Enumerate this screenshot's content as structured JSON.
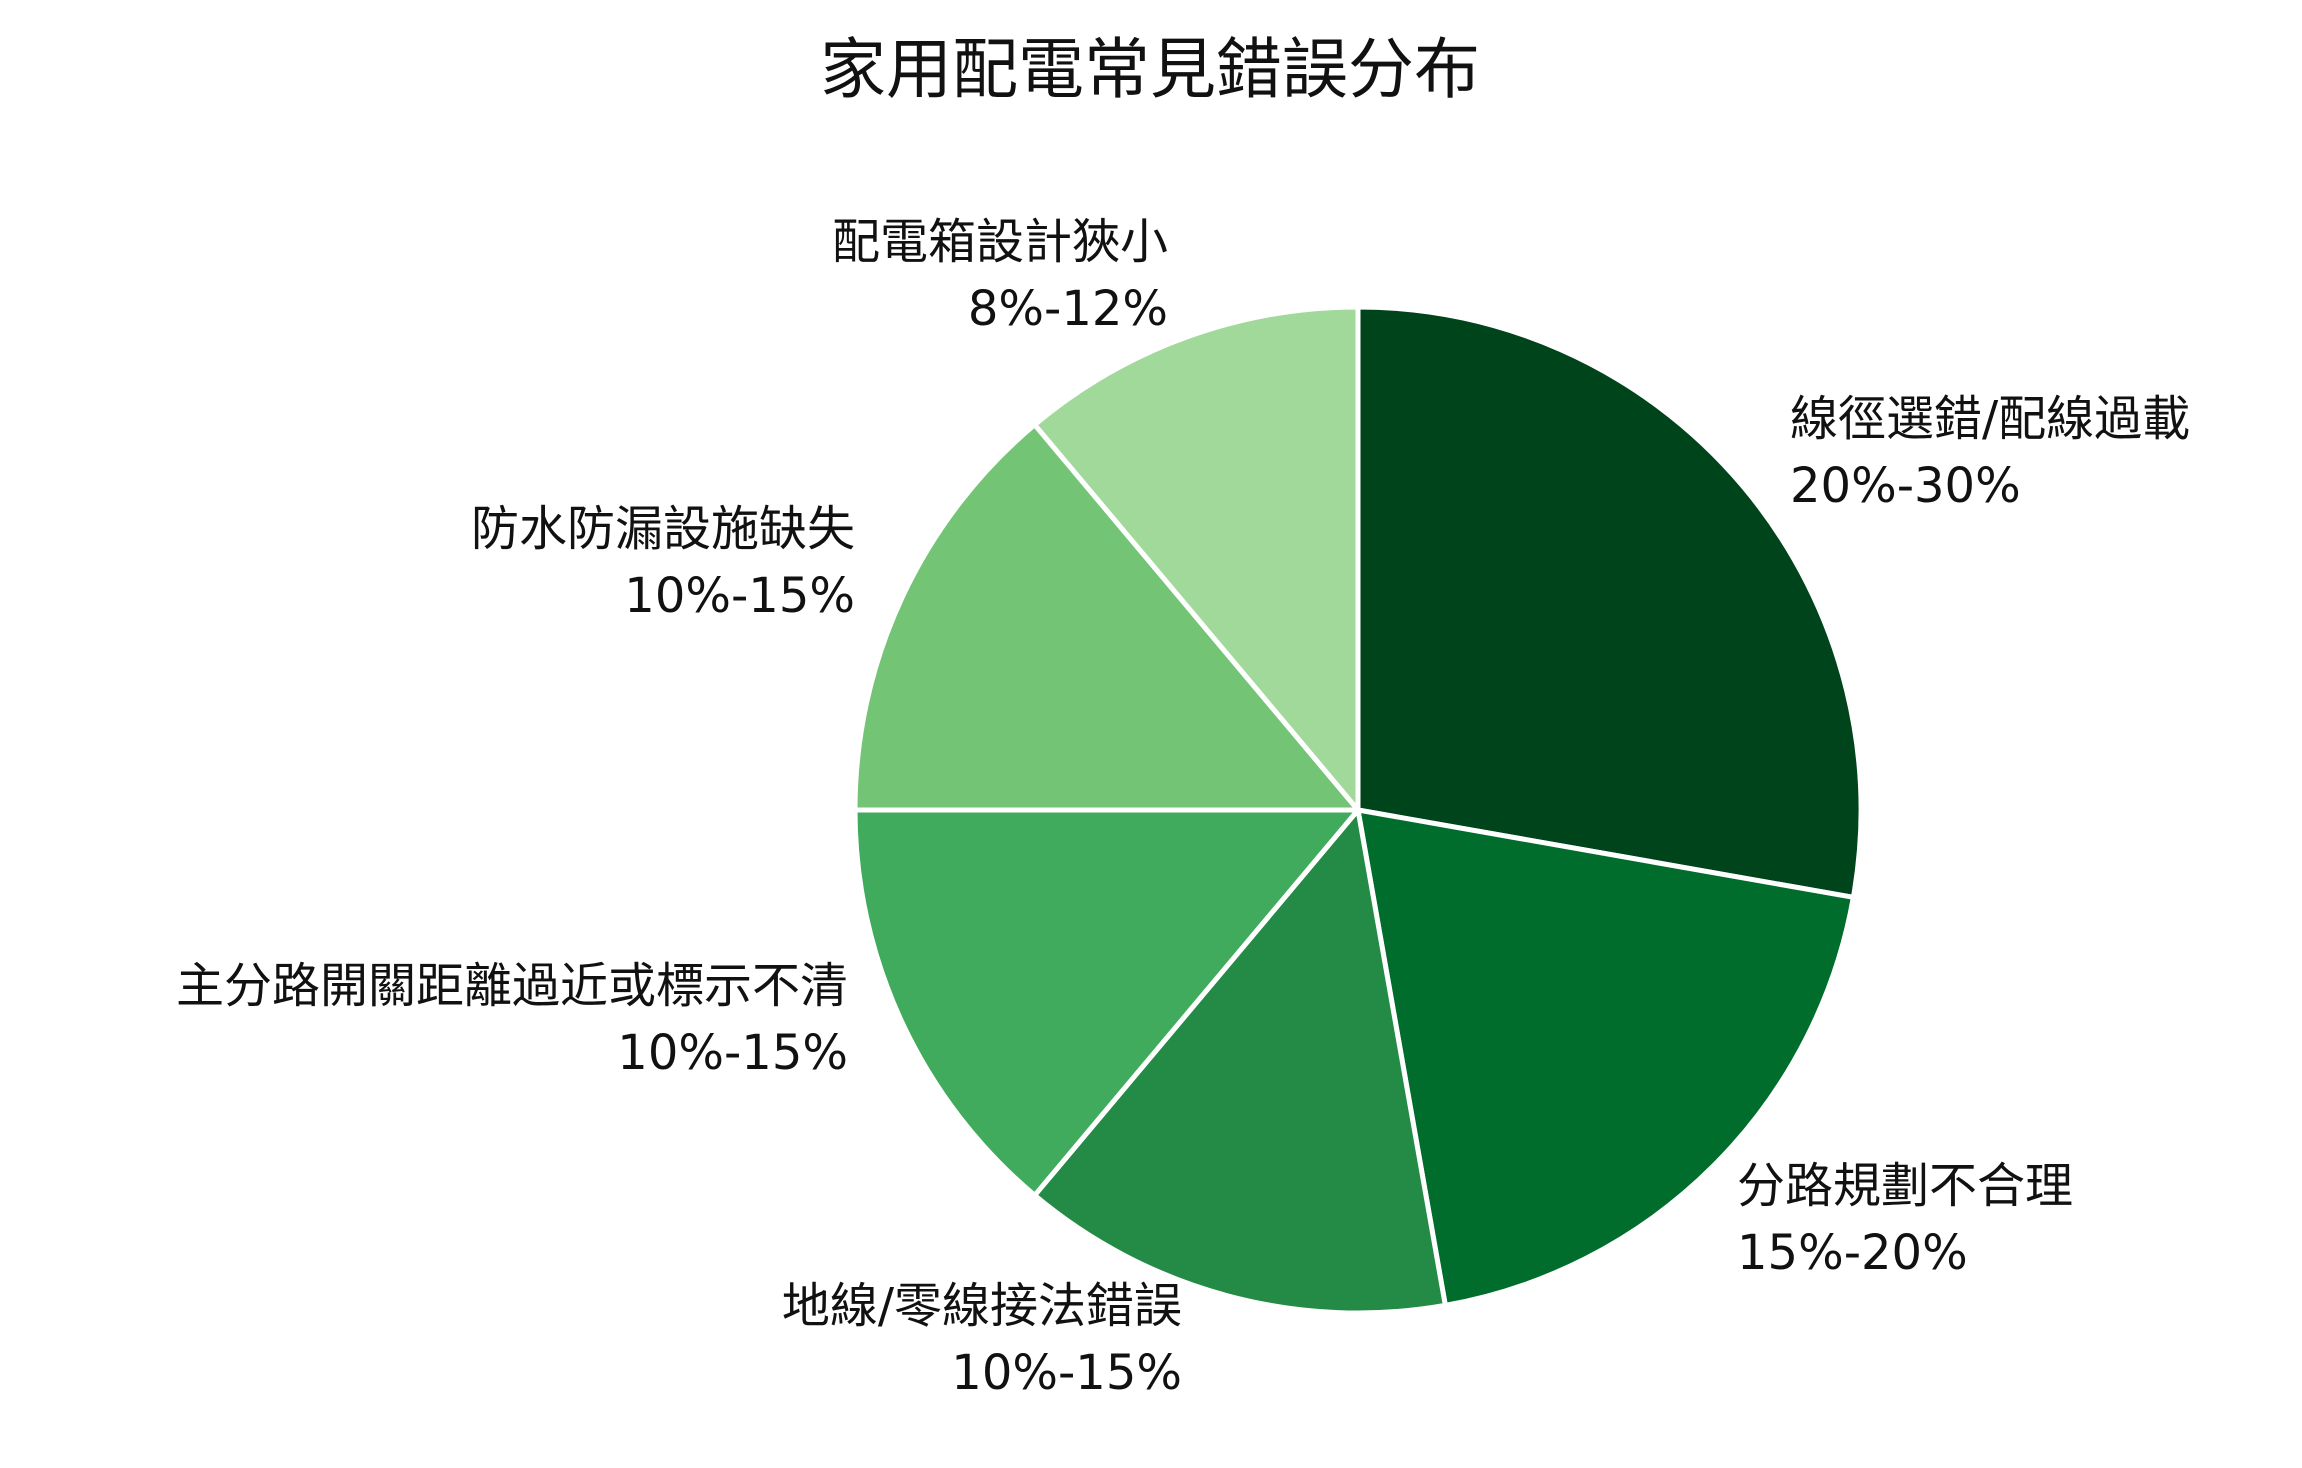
{
  "chart_data": {
    "type": "pie",
    "title": "家用配電常見錯誤分布",
    "slices": [
      {
        "label": "線徑選錯/配線過載",
        "range": "20%-30%",
        "value": 25,
        "color": "#00441b"
      },
      {
        "label": "分路規劃不合理",
        "range": "15%-20%",
        "value": 17.5,
        "color": "#006d2c"
      },
      {
        "label": "地線/零線接法錯誤",
        "range": "10%-15%",
        "value": 12.5,
        "color": "#238b45"
      },
      {
        "label": "主分路開關距離過近或標示不清",
        "range": "10%-15%",
        "value": 12.5,
        "color": "#41ab5d"
      },
      {
        "label": "防水防漏設施缺失",
        "range": "10%-15%",
        "value": 12.5,
        "color": "#74c476"
      },
      {
        "label": "配電箱設計狹小",
        "range": "8%-12%",
        "value": 10,
        "color": "#a1d99b"
      }
    ],
    "start_angle": "12 o'clock",
    "direction": "clockwise",
    "grid": false,
    "legend": "none"
  }
}
